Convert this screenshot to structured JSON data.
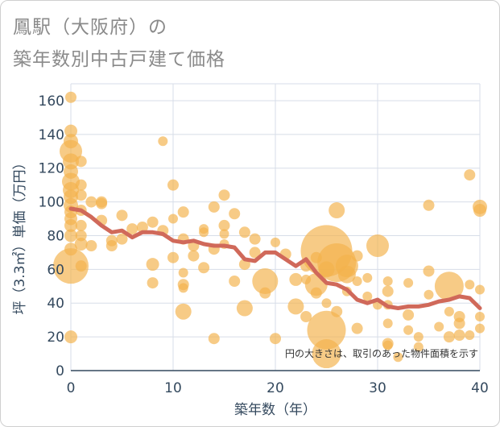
{
  "title_line1": "鳳駅（大阪府）の",
  "title_line2": "築年数別中古戸建て価格",
  "note": "円の大きさは、取引のあった物件面積を示す",
  "colors": {
    "bubble": "#f3b34c",
    "line": "#d0695a",
    "grid": "#d7dde8",
    "axis": "#34495e"
  },
  "chart_data": {
    "type": "scatter",
    "xlabel": "築年数（年）",
    "ylabel": "坪（3.3㎡）単価（万円）",
    "xlim": [
      0,
      40
    ],
    "ylim": [
      0,
      170
    ],
    "xticks": [
      0,
      10,
      20,
      30,
      40
    ],
    "yticks": [
      0,
      20,
      40,
      60,
      80,
      100,
      120,
      140,
      160
    ],
    "grid": true,
    "points": [
      [
        0,
        162,
        7
      ],
      [
        0,
        142,
        8
      ],
      [
        0,
        136,
        9
      ],
      [
        0,
        130,
        14
      ],
      [
        0,
        124,
        10
      ],
      [
        0,
        118,
        9
      ],
      [
        0,
        112,
        11
      ],
      [
        0,
        107,
        10
      ],
      [
        0,
        103,
        9
      ],
      [
        0,
        98,
        9
      ],
      [
        0,
        94,
        8
      ],
      [
        0,
        90,
        8
      ],
      [
        0,
        86,
        8
      ],
      [
        0,
        80,
        8
      ],
      [
        0,
        72,
        8
      ],
      [
        0,
        62,
        22
      ],
      [
        0,
        20,
        8
      ],
      [
        1,
        124,
        7
      ],
      [
        1,
        110,
        7
      ],
      [
        1,
        104,
        7
      ],
      [
        1,
        95,
        7
      ],
      [
        1,
        86,
        7
      ],
      [
        1,
        80,
        7
      ],
      [
        1,
        75,
        8
      ],
      [
        1,
        62,
        7
      ],
      [
        2,
        100,
        7
      ],
      [
        2,
        74,
        7
      ],
      [
        3,
        100,
        7
      ],
      [
        3,
        99,
        7
      ],
      [
        3,
        89,
        7
      ],
      [
        4,
        77,
        7
      ],
      [
        4,
        74,
        7
      ],
      [
        5,
        92,
        7
      ],
      [
        5,
        78,
        7
      ],
      [
        6,
        84,
        7
      ],
      [
        7,
        85,
        7
      ],
      [
        8,
        88,
        7
      ],
      [
        8,
        63,
        8
      ],
      [
        8,
        52,
        7
      ],
      [
        9,
        136,
        6
      ],
      [
        9,
        83,
        7
      ],
      [
        10,
        110,
        7
      ],
      [
        10,
        90,
        6
      ],
      [
        10,
        67,
        7
      ],
      [
        11,
        94,
        7
      ],
      [
        11,
        78,
        7
      ],
      [
        11,
        58,
        6
      ],
      [
        11,
        51,
        7
      ],
      [
        11,
        49,
        6
      ],
      [
        11,
        35,
        10
      ],
      [
        12,
        68,
        7
      ],
      [
        12,
        74,
        7
      ],
      [
        13,
        84,
        6
      ],
      [
        13,
        82,
        6
      ],
      [
        13,
        61,
        7
      ],
      [
        14,
        97,
        7
      ],
      [
        14,
        72,
        7
      ],
      [
        14,
        19,
        7
      ],
      [
        15,
        104,
        7
      ],
      [
        15,
        86,
        7
      ],
      [
        15,
        75,
        6
      ],
      [
        15,
        81,
        6
      ],
      [
        16,
        93,
        7
      ],
      [
        16,
        53,
        7
      ],
      [
        17,
        82,
        7
      ],
      [
        17,
        63,
        7
      ],
      [
        17,
        37,
        10
      ],
      [
        18,
        78,
        7
      ],
      [
        18,
        70,
        7
      ],
      [
        19,
        53,
        16
      ],
      [
        19,
        46,
        7
      ],
      [
        20,
        76,
        6
      ],
      [
        20,
        19,
        7
      ],
      [
        21,
        69,
        7
      ],
      [
        22,
        54,
        8
      ],
      [
        22,
        38,
        10
      ],
      [
        23,
        62,
        7
      ],
      [
        23,
        54,
        6
      ],
      [
        23,
        32,
        7
      ],
      [
        24,
        67,
        7
      ],
      [
        24,
        51,
        14
      ],
      [
        24,
        46,
        7
      ],
      [
        25,
        71,
        32
      ],
      [
        25,
        60,
        10
      ],
      [
        25,
        40,
        6
      ],
      [
        25,
        24,
        24
      ],
      [
        25,
        10,
        18
      ],
      [
        26,
        95,
        10
      ],
      [
        26,
        64,
        24
      ],
      [
        26,
        35,
        7
      ],
      [
        27,
        62,
        14
      ],
      [
        27,
        57,
        11
      ],
      [
        27,
        47,
        6
      ],
      [
        28,
        68,
        7
      ],
      [
        28,
        53,
        6
      ],
      [
        28,
        25,
        7
      ],
      [
        29,
        55,
        6
      ],
      [
        29,
        44,
        6
      ],
      [
        30,
        74,
        14
      ],
      [
        30,
        39,
        6
      ],
      [
        31,
        53,
        6
      ],
      [
        31,
        47,
        7
      ],
      [
        31,
        39,
        6
      ],
      [
        31,
        28,
        6
      ],
      [
        31,
        16,
        7
      ],
      [
        31,
        15,
        6
      ],
      [
        32,
        8,
        6
      ],
      [
        33,
        52,
        6
      ],
      [
        33,
        33,
        7
      ],
      [
        33,
        24,
        6
      ],
      [
        34,
        20,
        6
      ],
      [
        34,
        14,
        6
      ],
      [
        35,
        98,
        7
      ],
      [
        35,
        59,
        7
      ],
      [
        35,
        45,
        6
      ],
      [
        36,
        26,
        6
      ],
      [
        37,
        50,
        18
      ],
      [
        37,
        35,
        6
      ],
      [
        37,
        20,
        7
      ],
      [
        38,
        32,
        7
      ],
      [
        38,
        28,
        7
      ],
      [
        38,
        21,
        7
      ],
      [
        39,
        116,
        7
      ],
      [
        39,
        51,
        6
      ],
      [
        39,
        21,
        6
      ],
      [
        40,
        97,
        9
      ],
      [
        40,
        95,
        8
      ],
      [
        40,
        48,
        6
      ],
      [
        40,
        32,
        6
      ],
      [
        40,
        25,
        6
      ]
    ],
    "trend": [
      [
        0,
        96
      ],
      [
        1,
        95
      ],
      [
        2,
        91
      ],
      [
        3,
        86
      ],
      [
        4,
        82
      ],
      [
        5,
        83
      ],
      [
        6,
        79
      ],
      [
        7,
        82
      ],
      [
        8,
        82
      ],
      [
        9,
        81
      ],
      [
        10,
        77
      ],
      [
        11,
        76
      ],
      [
        12,
        77
      ],
      [
        13,
        75
      ],
      [
        14,
        74
      ],
      [
        15,
        74
      ],
      [
        16,
        73
      ],
      [
        17,
        66
      ],
      [
        18,
        65
      ],
      [
        19,
        70
      ],
      [
        20,
        70
      ],
      [
        21,
        66
      ],
      [
        22,
        62
      ],
      [
        23,
        66
      ],
      [
        24,
        58
      ],
      [
        25,
        52
      ],
      [
        26,
        51
      ],
      [
        27,
        48
      ],
      [
        28,
        42
      ],
      [
        29,
        40
      ],
      [
        30,
        42
      ],
      [
        31,
        38
      ],
      [
        32,
        37
      ],
      [
        33,
        38
      ],
      [
        34,
        38
      ],
      [
        35,
        39
      ],
      [
        36,
        41
      ],
      [
        37,
        42
      ],
      [
        38,
        44
      ],
      [
        39,
        43
      ],
      [
        40,
        37
      ]
    ]
  }
}
